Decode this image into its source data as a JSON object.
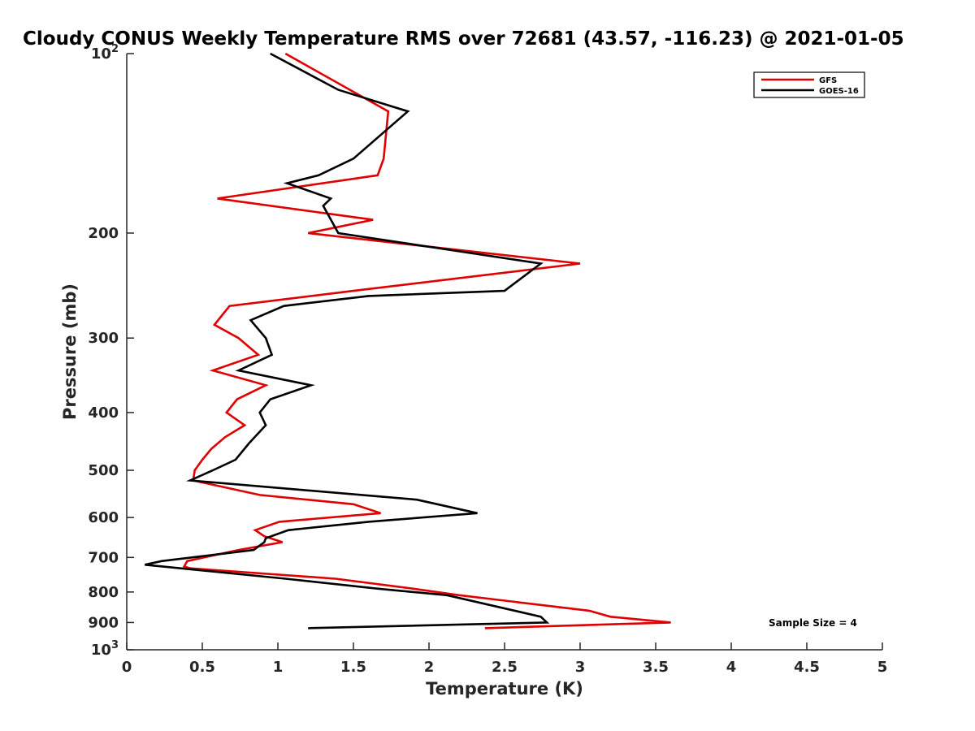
{
  "chart_data": {
    "type": "line",
    "title": "Cloudy CONUS Weekly Temperature RMS over 72681 (43.57, -116.23) @ 2021-01-05",
    "xlabel": "Temperature (K)",
    "ylabel": "Pressure (mb)",
    "xlim": [
      0,
      5
    ],
    "ylim": [
      1000,
      100
    ],
    "yscale": "log",
    "x_ticks": [
      "0",
      "0.5",
      "1",
      "1.5",
      "2",
      "2.5",
      "3",
      "3.5",
      "4",
      "4.5",
      "5"
    ],
    "y_ticks": [
      {
        "value": 100,
        "base": "10",
        "exp": "2"
      },
      {
        "value": 200,
        "label": "200"
      },
      {
        "value": 300,
        "label": "300"
      },
      {
        "value": 400,
        "label": "400"
      },
      {
        "value": 500,
        "label": "500"
      },
      {
        "value": 600,
        "label": "600"
      },
      {
        "value": 700,
        "label": "700"
      },
      {
        "value": 800,
        "label": "800"
      },
      {
        "value": 900,
        "label": "900"
      },
      {
        "value": 1000,
        "base": "10",
        "exp": "3"
      }
    ],
    "grid": false,
    "legend_position": "top-right",
    "annotation": "Sample Size = 4",
    "series": [
      {
        "name": "GFS",
        "color": "#e00000",
        "points": [
          [
            1.05,
            100
          ],
          [
            1.73,
            125
          ],
          [
            1.7,
            150
          ],
          [
            1.66,
            160
          ],
          [
            0.6,
            175
          ],
          [
            1.63,
            190
          ],
          [
            1.2,
            200
          ],
          [
            3.0,
            225
          ],
          [
            1.5,
            250
          ],
          [
            0.68,
            265
          ],
          [
            0.58,
            285
          ],
          [
            0.74,
            300
          ],
          [
            0.87,
            320
          ],
          [
            0.57,
            340
          ],
          [
            0.92,
            360
          ],
          [
            0.73,
            380
          ],
          [
            0.66,
            400
          ],
          [
            0.78,
            420
          ],
          [
            0.65,
            440
          ],
          [
            0.56,
            460
          ],
          [
            0.5,
            480
          ],
          [
            0.45,
            500
          ],
          [
            0.44,
            520
          ],
          [
            0.88,
            550
          ],
          [
            1.5,
            570
          ],
          [
            1.68,
            590
          ],
          [
            1.01,
            610
          ],
          [
            0.85,
            630
          ],
          [
            0.91,
            645
          ],
          [
            1.03,
            660
          ],
          [
            0.74,
            680
          ],
          [
            0.4,
            710
          ],
          [
            0.38,
            725
          ],
          [
            0.42,
            730
          ],
          [
            1.38,
            760
          ],
          [
            1.9,
            790
          ],
          [
            2.2,
            810
          ],
          [
            3.06,
            860
          ],
          [
            3.2,
            880
          ],
          [
            3.6,
            900
          ],
          [
            2.37,
            920
          ]
        ]
      },
      {
        "name": "GOES-16",
        "color": "#000000",
        "points": [
          [
            0.95,
            100
          ],
          [
            1.4,
            115
          ],
          [
            1.86,
            125
          ],
          [
            1.5,
            150
          ],
          [
            1.27,
            160
          ],
          [
            1.06,
            165
          ],
          [
            1.35,
            175
          ],
          [
            1.3,
            180
          ],
          [
            1.4,
            200
          ],
          [
            2.74,
            225
          ],
          [
            2.5,
            250
          ],
          [
            1.6,
            255
          ],
          [
            1.04,
            265
          ],
          [
            0.82,
            280
          ],
          [
            0.92,
            300
          ],
          [
            0.96,
            320
          ],
          [
            0.74,
            340
          ],
          [
            1.22,
            360
          ],
          [
            0.95,
            380
          ],
          [
            0.88,
            400
          ],
          [
            0.92,
            420
          ],
          [
            0.81,
            450
          ],
          [
            0.72,
            480
          ],
          [
            0.57,
            500
          ],
          [
            0.42,
            520
          ],
          [
            1.92,
            560
          ],
          [
            2.32,
            590
          ],
          [
            1.6,
            610
          ],
          [
            1.07,
            630
          ],
          [
            0.92,
            650
          ],
          [
            0.91,
            660
          ],
          [
            0.84,
            680
          ],
          [
            0.23,
            710
          ],
          [
            0.12,
            720
          ],
          [
            1.05,
            760
          ],
          [
            1.67,
            790
          ],
          [
            2.12,
            810
          ],
          [
            2.74,
            880
          ],
          [
            2.78,
            900
          ],
          [
            1.2,
            920
          ]
        ]
      }
    ]
  }
}
